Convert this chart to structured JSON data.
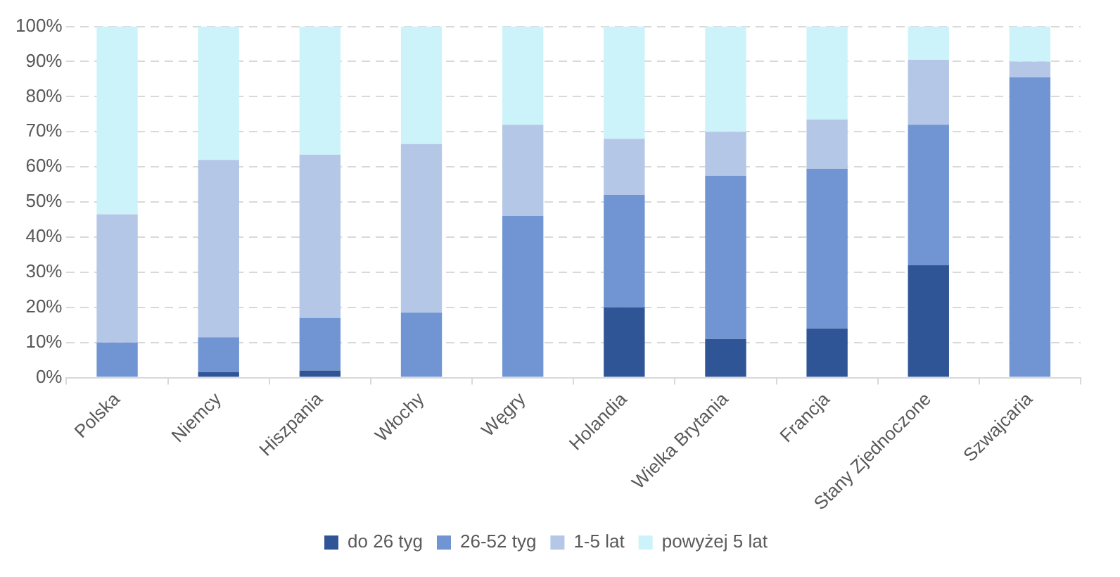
{
  "chart_data": {
    "type": "bar",
    "stacked": true,
    "categories": [
      "Polska",
      "Niemcy",
      "Hiszpania",
      "Włochy",
      "Węgry",
      "Holandia",
      "Wielka Brytania",
      "Francja",
      "Stany Zjednoczone",
      "Szwajcaria"
    ],
    "series": [
      {
        "name": "do 26 tyg",
        "color": "#2f5597",
        "values": [
          0,
          1.5,
          2,
          0,
          0,
          20,
          11,
          14,
          32,
          0
        ]
      },
      {
        "name": "26-52 tyg",
        "color": "#7195d2",
        "values": [
          10,
          10,
          15,
          18.5,
          46,
          32,
          46.5,
          45.5,
          40,
          85.5
        ]
      },
      {
        "name": "1-5 lat",
        "color": "#b4c7e7",
        "values": [
          36.5,
          50.5,
          46.5,
          48,
          26,
          16,
          12.5,
          14,
          18.5,
          4.5
        ]
      },
      {
        "name": "powyżej 5 lat",
        "color": "#cdf3fa",
        "values": [
          53.5,
          38,
          36.5,
          33.5,
          28,
          32,
          30,
          26.5,
          9.5,
          10
        ]
      }
    ],
    "ylim": [
      0,
      100
    ],
    "yticks": [
      {
        "value": 0,
        "label": "0%"
      },
      {
        "value": 10,
        "label": "10%"
      },
      {
        "value": 20,
        "label": "20%"
      },
      {
        "value": 30,
        "label": "30%"
      },
      {
        "value": 40,
        "label": "40%"
      },
      {
        "value": 50,
        "label": "50%"
      },
      {
        "value": 60,
        "label": "60%"
      },
      {
        "value": 70,
        "label": "70%"
      },
      {
        "value": 80,
        "label": "80%"
      },
      {
        "value": 90,
        "label": "90%"
      },
      {
        "value": 100,
        "label": "100%"
      }
    ],
    "grid": "y",
    "legend": "bottom"
  }
}
